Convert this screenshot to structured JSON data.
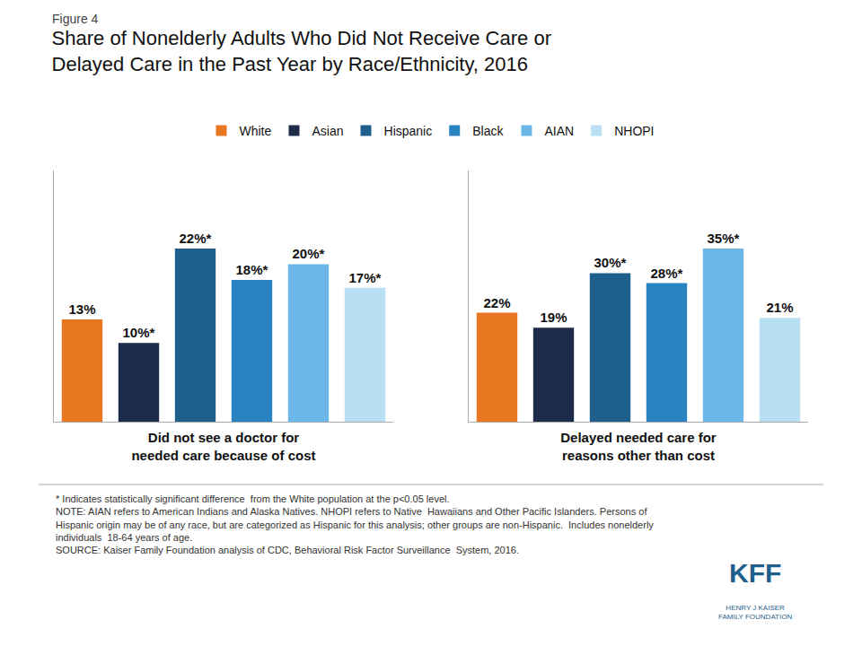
{
  "title": "Share of Nonelderly Adults Who Did Not Receive Care or\nDelayed Care in the Past Year by Race/Ethnicity, 2016",
  "annotations": [
    "Figure 4",
    "* Indicates statistically significant difference  from the White population at the p<0.05 level.\nNOTE: AIAN refers to American Indians and Alaska Natives. NHOPI refers to Native  Hawaiians and Other Pacific Islanders. Persons of\nHispanic origin may be of any race, but are categorized as Hispanic for this analysis; other groups are non-Hispanic.  Includes nonelderly\nindividuals  18-64 years of age.\nSOURCE: Kaiser Family Foundation analysis of CDC, Behavioral Risk Factor Surveillance  System, 2016.",
    "KFF",
    "HENRY J KAISER\nFAMILY FOUNDATION"
  ],
  "chart_data": [
    {
      "type": "bar",
      "xlabel": "Did not see a doctor for\nneeded care because of cost",
      "categories": [
        "White",
        "Asian",
        "Hispanic",
        "Black",
        "AIAN",
        "NHOPI"
      ],
      "values": [
        13,
        10,
        22,
        18,
        20,
        17
      ],
      "value_labels": [
        "13%",
        "10%*",
        "22%*",
        "18%*",
        "20%*",
        "17%*"
      ],
      "colors": [
        "#E87722",
        "#1C2B4A",
        "#1F5F8B",
        "#2883C0",
        "#6BB8E8",
        "#B8DFF2"
      ],
      "ylim": [
        0,
        31.9
      ],
      "data_labels": true,
      "tick_labels": false,
      "grid": false,
      "legend": "top"
    },
    {
      "type": "bar",
      "xlabel": "Delayed needed care for\nreasons other than cost",
      "categories": [
        "White",
        "Asian",
        "Hispanic",
        "Black",
        "AIAN",
        "NHOPI"
      ],
      "values": [
        22,
        19,
        30,
        28,
        35,
        21
      ],
      "value_labels": [
        "22%",
        "19%",
        "30%*",
        "28%*",
        "35%*",
        "21%"
      ],
      "colors": [
        "#E87722",
        "#1C2B4A",
        "#1F5F8B",
        "#2883C0",
        "#6BB8E8",
        "#B8DFF2"
      ],
      "ylim": [
        0,
        50.75
      ],
      "data_labels": true,
      "tick_labels": false,
      "grid": false,
      "legend": "top"
    }
  ]
}
